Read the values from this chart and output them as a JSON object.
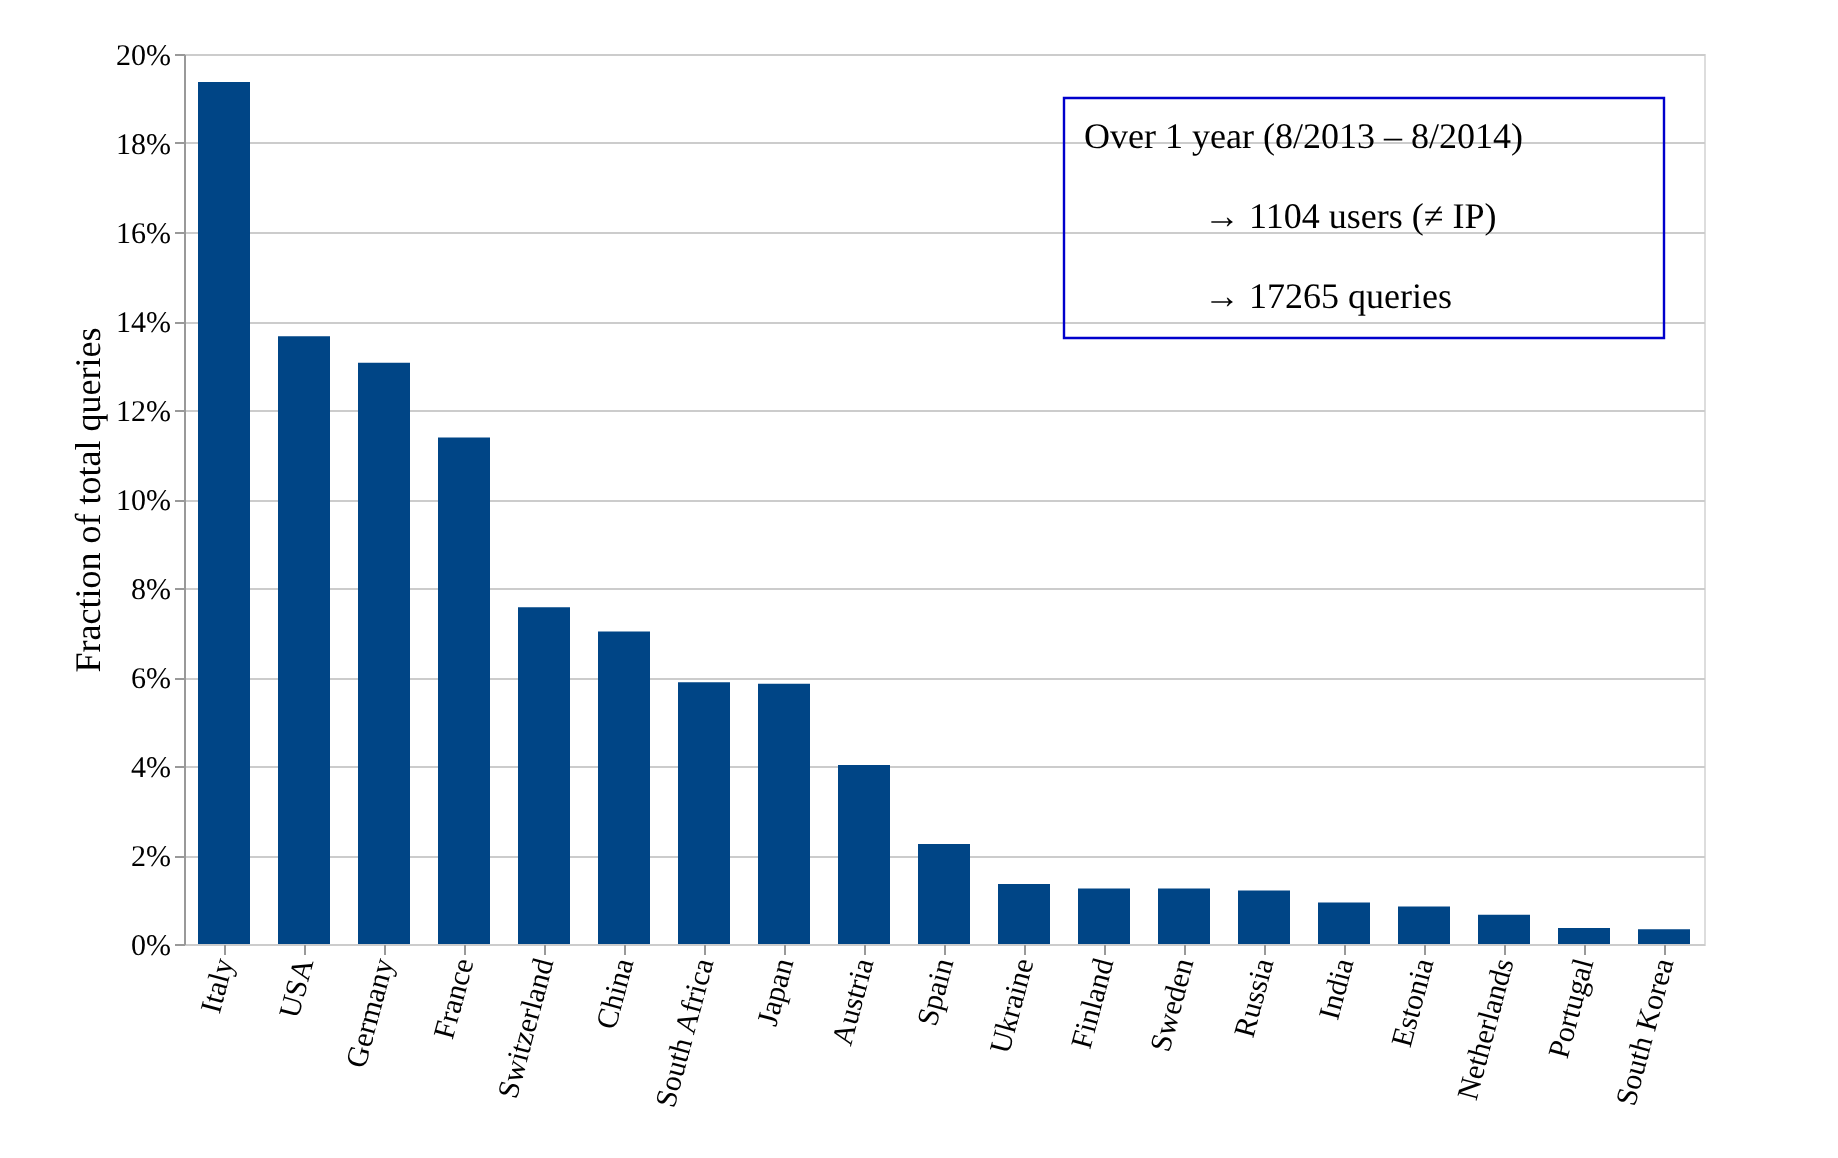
{
  "chart_data": {
    "type": "bar",
    "ylabel": "Fraction of total queries",
    "categories": [
      "Italy",
      "USA",
      "Germany",
      "France",
      "Switzerland",
      "China",
      "South Africa",
      "Japan",
      "Austria",
      "Spain",
      "Ukraine",
      "Finland",
      "Sweden",
      "Russia",
      "India",
      "Estonia",
      "Netherlands",
      "Portugal",
      "South Korea"
    ],
    "values": [
      19.37,
      13.66,
      13.06,
      11.38,
      7.57,
      7.02,
      5.88,
      5.85,
      4.02,
      2.25,
      1.35,
      1.25,
      1.25,
      1.2,
      0.93,
      0.84,
      0.66,
      0.36,
      0.33
    ],
    "color": "#004586",
    "ylim": [
      0,
      20
    ],
    "yticks": [
      {
        "value": 0,
        "label": "0%"
      },
      {
        "value": 2,
        "label": "2%"
      },
      {
        "value": 4,
        "label": "4%"
      },
      {
        "value": 6,
        "label": "6%"
      },
      {
        "value": 8,
        "label": "8%"
      },
      {
        "value": 10,
        "label": "10%"
      },
      {
        "value": 12,
        "label": "12%"
      },
      {
        "value": 14,
        "label": "14%"
      },
      {
        "value": 16,
        "label": "16%"
      },
      {
        "value": 18,
        "label": "18%"
      },
      {
        "value": 20,
        "label": "20%"
      }
    ],
    "grid": "y",
    "annotations": [
      "Over 1 year (8/2013 – 8/2014)",
      "→ 1104 users (≠ IP)",
      "→ 17265 queries"
    ]
  }
}
